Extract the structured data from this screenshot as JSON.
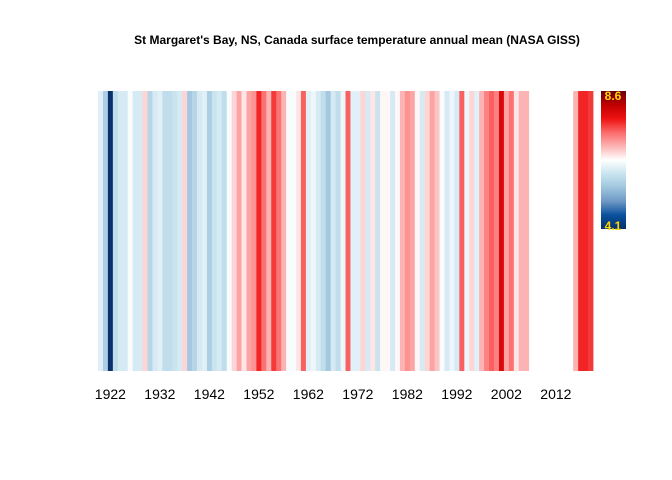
{
  "chart_data": {
    "type": "heatmap",
    "title": "St Margaret's Bay, NS, Canada surface temperature annual mean (NASA GISS)",
    "xlabel": "",
    "ylabel": "",
    "x_range": [
      1920,
      2019
    ],
    "x_ticks": [
      "1922",
      "1932",
      "1942",
      "1952",
      "1962",
      "1972",
      "1982",
      "1992",
      "2002",
      "2012"
    ],
    "color_scale": {
      "min": 4.1,
      "max": 8.6,
      "min_label": "4.1",
      "max_label": "8.6",
      "colors": [
        "#08306b",
        "#08519c",
        "#6f98c4",
        "#9ec5de",
        "#c9e4ef",
        "#ffffff",
        "#fcb3b3",
        "#fb6a6a",
        "#ee1111",
        "#c00000",
        "#67000d"
      ],
      "label_color": "#ffd700"
    },
    "years": [
      1920,
      1921,
      1922,
      1923,
      1924,
      1925,
      1926,
      1927,
      1928,
      1929,
      1930,
      1931,
      1932,
      1933,
      1934,
      1935,
      1936,
      1937,
      1938,
      1939,
      1940,
      1941,
      1942,
      1943,
      1944,
      1945,
      1946,
      1947,
      1948,
      1949,
      1950,
      1951,
      1952,
      1953,
      1954,
      1955,
      1956,
      1957,
      1958,
      1959,
      1960,
      1961,
      1962,
      1963,
      1964,
      1965,
      1966,
      1967,
      1968,
      1969,
      1970,
      1971,
      1972,
      1973,
      1974,
      1975,
      1976,
      1977,
      1978,
      1979,
      1980,
      1981,
      1982,
      1983,
      1984,
      1985,
      1986,
      1987,
      1988,
      1989,
      1990,
      1991,
      1992,
      1993,
      1994,
      1995,
      1996,
      1997,
      1998,
      1999,
      2000,
      2001,
      2002,
      2003,
      2004,
      2005,
      2006,
      2007,
      2008,
      2009,
      2010,
      2011,
      2012,
      2013,
      2014,
      2015,
      2016,
      2017,
      2018,
      2019
    ],
    "values": [
      6.1,
      5.6,
      4.1,
      5.8,
      6.0,
      6.0,
      6.3,
      6.0,
      6.0,
      6.6,
      5.7,
      6.0,
      6.1,
      5.8,
      5.8,
      5.9,
      6.0,
      6.6,
      5.5,
      5.7,
      6.0,
      6.1,
      5.6,
      5.9,
      6.0,
      5.8,
      6.3,
      6.6,
      6.9,
      6.5,
      6.9,
      7.0,
      7.6,
      7.2,
      6.8,
      7.5,
      7.2,
      6.8,
      6.3,
      6.3,
      6.5,
      7.3,
      6.1,
      6.2,
      6.0,
      5.8,
      5.5,
      6.0,
      5.8,
      6.2,
      7.3,
      6.1,
      6.1,
      6.6,
      6.0,
      6.5,
      5.9,
      6.4,
      6.4,
      6.0,
      6.4,
      6.8,
      7.0,
      6.9,
      6.4,
      6.0,
      6.6,
      6.9,
      6.7,
      6.3,
      6.0,
      6.2,
      6.0,
      7.3,
      6.2,
      6.6,
      6.1,
      6.8,
      7.1,
      7.3,
      7.1,
      7.9,
      6.9,
      7.2,
      6.5,
      6.8,
      6.8,
      null,
      null,
      null,
      null,
      null,
      null,
      null,
      null,
      null,
      6.8,
      7.6,
      7.6,
      7.5
    ]
  }
}
